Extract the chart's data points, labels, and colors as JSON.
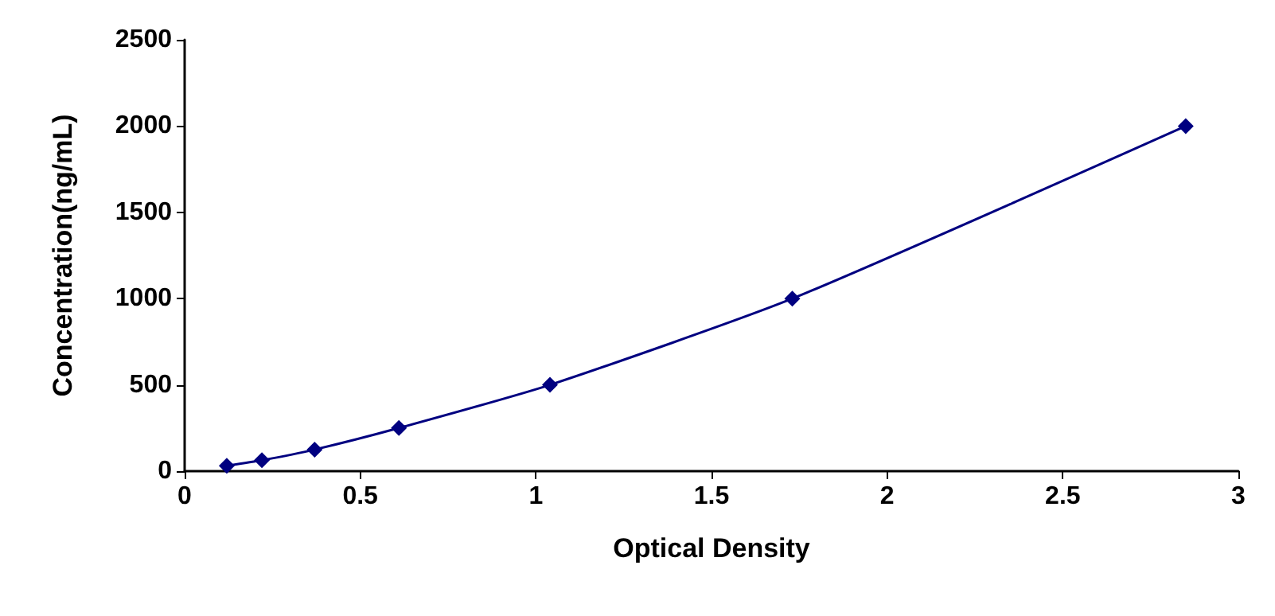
{
  "chart_data": {
    "type": "line",
    "xlabel": "Optical Density",
    "ylabel": "Concentration(ng/mL)",
    "x": [
      0.12,
      0.22,
      0.37,
      0.61,
      1.04,
      1.73,
      2.85
    ],
    "series": [
      {
        "color": "#000080",
        "values": [
          31,
          63,
          125,
          250,
          500,
          1000,
          2000
        ]
      }
    ],
    "xlim": [
      0,
      3
    ],
    "xticks": [
      0,
      0.5,
      1,
      1.5,
      2,
      2.5,
      3
    ],
    "ylim": [
      0,
      2500
    ],
    "yticks": [
      0,
      500,
      1000,
      1500,
      2000,
      2500
    ],
    "grid": false,
    "marker": "diamond",
    "line_style": "solid"
  }
}
